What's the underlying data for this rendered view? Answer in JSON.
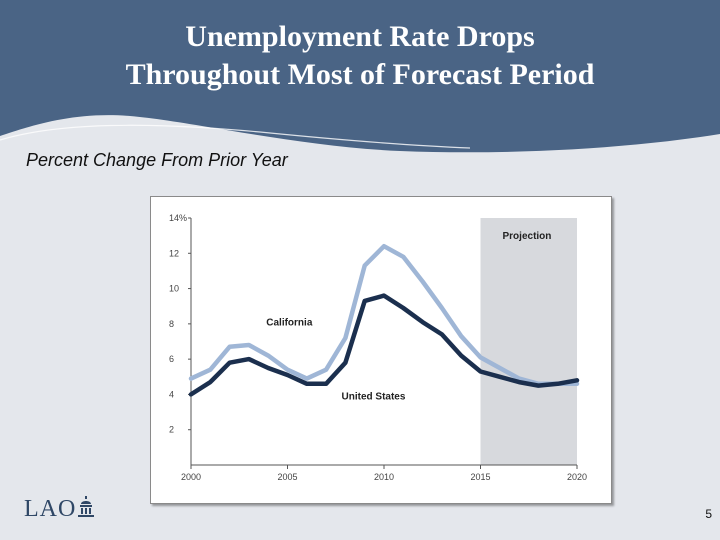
{
  "slide": {
    "title_line1": "Unemployment Rate Drops",
    "title_line2": "Throughout Most of Forecast Period",
    "subtitle": "Percent Change From Prior Year",
    "logo_text": "LAO",
    "page_number": "5"
  },
  "colors": {
    "header": "#4a6485",
    "california": "#9fb6d6",
    "united_states": "#1b2f4e",
    "projection_shade": "#d7d9dd"
  },
  "chart_data": {
    "type": "line",
    "title": "",
    "xlabel": "",
    "ylabel": "",
    "xlim": [
      2000,
      2020
    ],
    "ylim": [
      0,
      14
    ],
    "y_ticks": [
      {
        "value": 2,
        "label": "2"
      },
      {
        "value": 4,
        "label": "4"
      },
      {
        "value": 6,
        "label": "6"
      },
      {
        "value": 8,
        "label": "8"
      },
      {
        "value": 10,
        "label": "10"
      },
      {
        "value": 12,
        "label": "12"
      },
      {
        "value": 14,
        "label": "14%"
      }
    ],
    "x_ticks": [
      2000,
      2005,
      2010,
      2015,
      2020
    ],
    "projection": {
      "label": "Projection",
      "start": 2015,
      "end": 2020
    },
    "series": [
      {
        "name": "California",
        "label_year": 2003.9,
        "label_value": 7.9,
        "x": [
          2000,
          2001,
          2002,
          2003,
          2004,
          2005,
          2006,
          2007,
          2008,
          2009,
          2010,
          2011,
          2012,
          2013,
          2014,
          2015,
          2016,
          2017,
          2018,
          2019,
          2020
        ],
        "values": [
          4.9,
          5.4,
          6.7,
          6.8,
          6.2,
          5.4,
          4.9,
          5.4,
          7.2,
          11.3,
          12.4,
          11.8,
          10.4,
          8.9,
          7.3,
          6.1,
          5.5,
          4.9,
          4.6,
          4.6,
          4.6
        ]
      },
      {
        "name": "United States",
        "label_year": 2007.8,
        "label_value": 3.7,
        "x": [
          2000,
          2001,
          2002,
          2003,
          2004,
          2005,
          2006,
          2007,
          2008,
          2009,
          2010,
          2011,
          2012,
          2013,
          2014,
          2015,
          2016,
          2017,
          2018,
          2019,
          2020
        ],
        "values": [
          4.0,
          4.7,
          5.8,
          6.0,
          5.5,
          5.1,
          4.6,
          4.6,
          5.8,
          9.3,
          9.6,
          8.9,
          8.1,
          7.4,
          6.2,
          5.3,
          5.0,
          4.7,
          4.5,
          4.6,
          4.8
        ]
      }
    ]
  }
}
